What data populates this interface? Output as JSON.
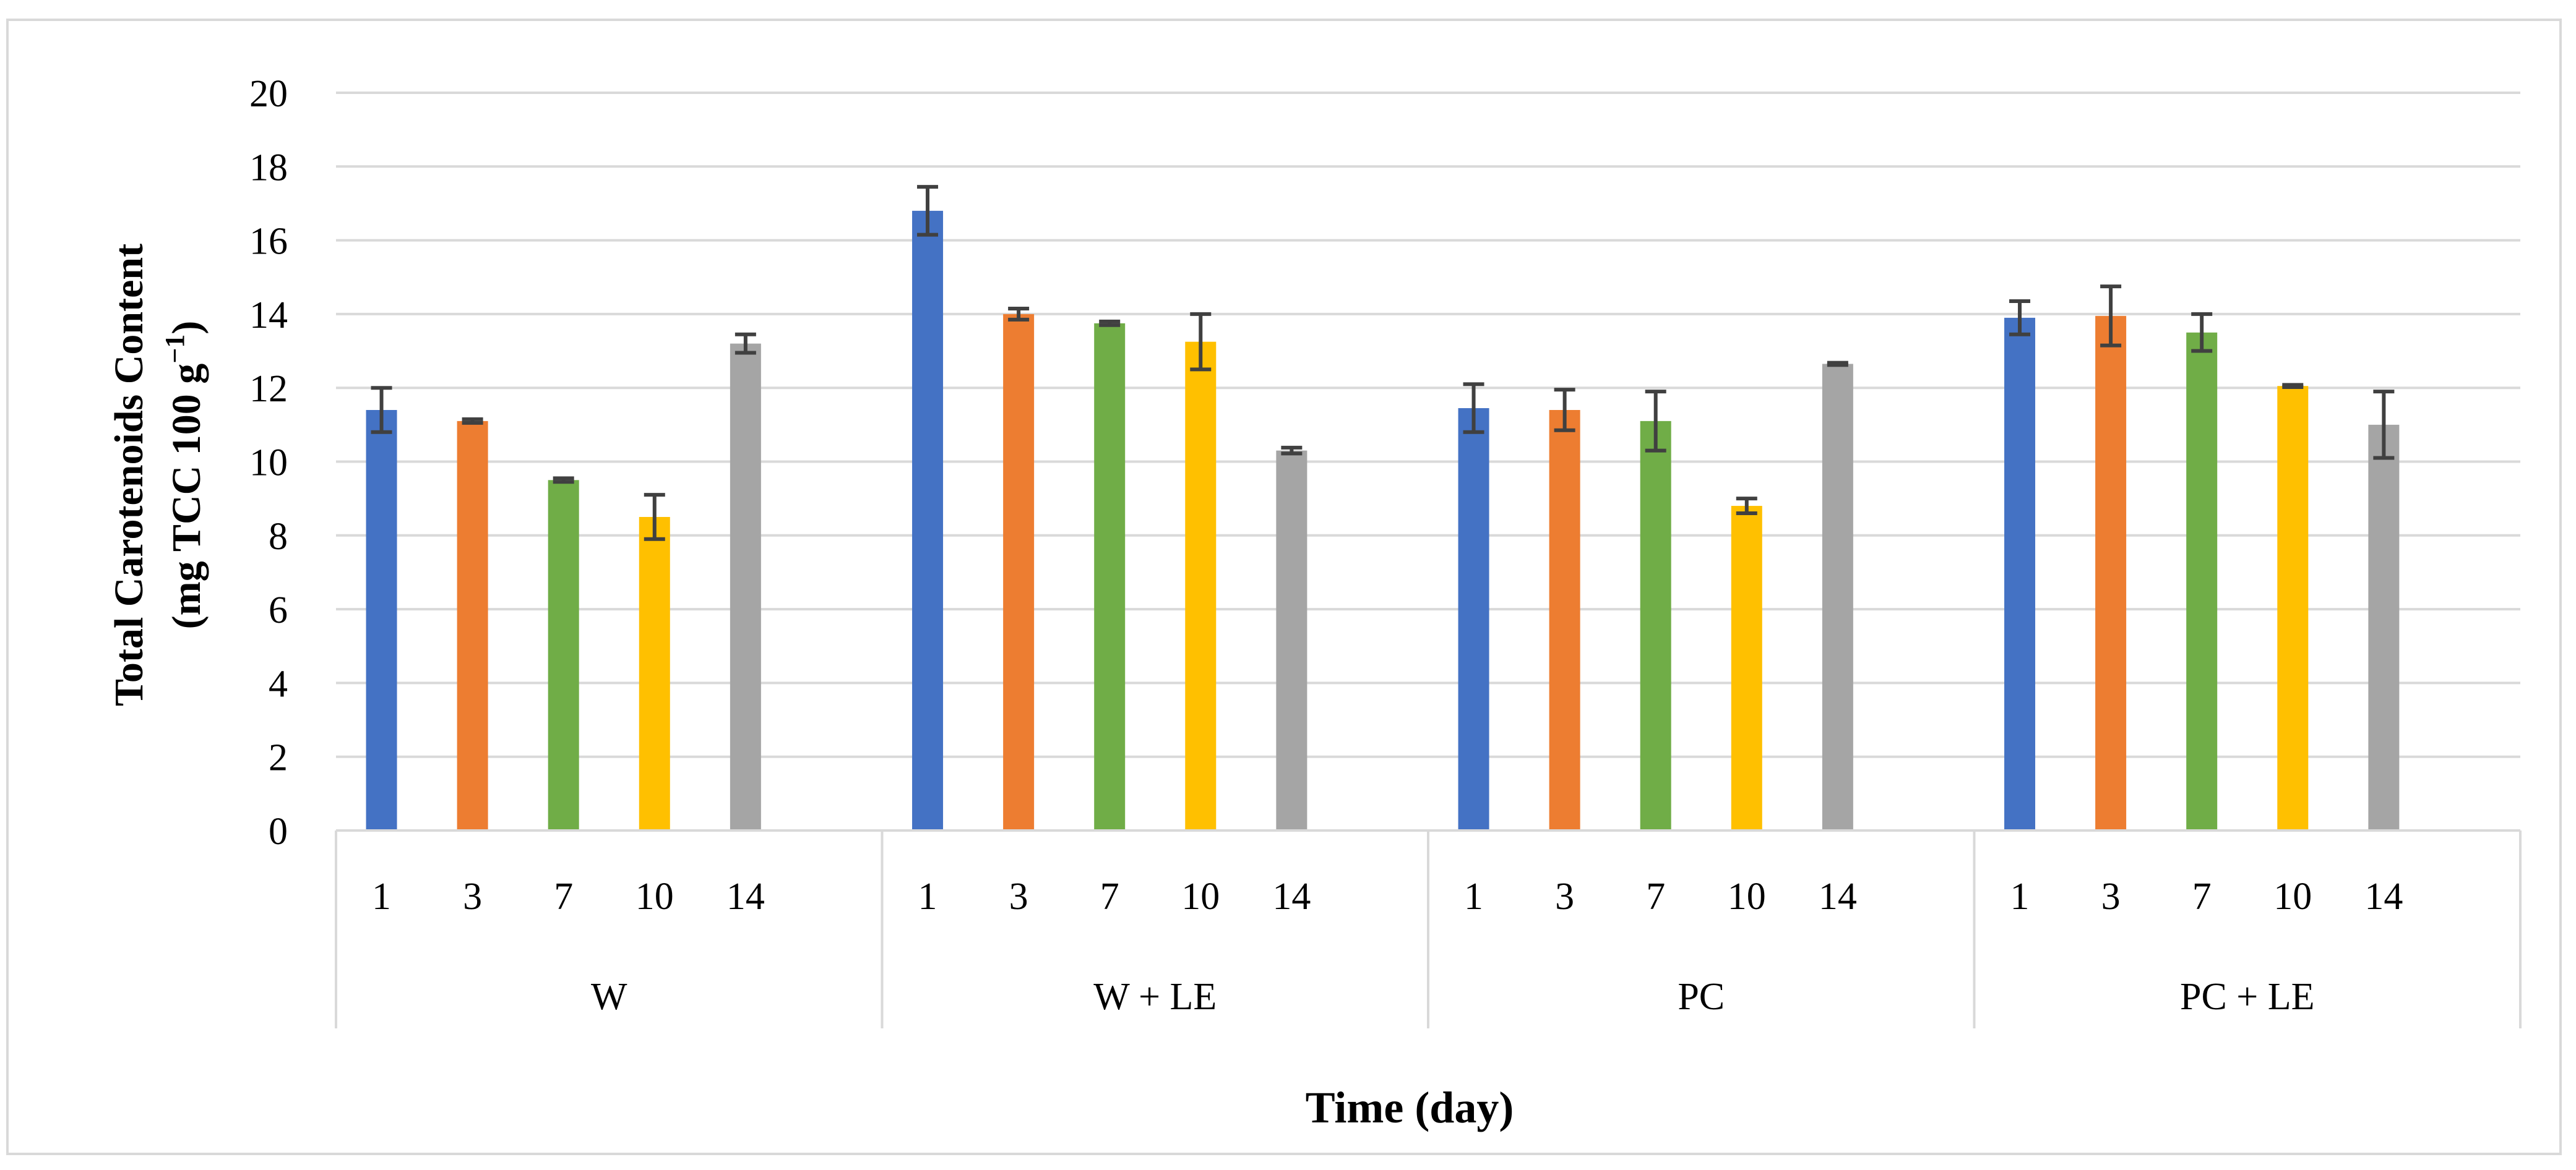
{
  "chart_data": {
    "type": "bar",
    "title": "",
    "xlabel": "Time (day)",
    "ylabel_line1": "Total Carotenoids Content",
    "ylabel_line2_prefix": "(mg TCC 100 g",
    "ylabel_line2_sup": "−1",
    "ylabel_line2_suffix": ")",
    "ylim": [
      0,
      20
    ],
    "yticks": [
      0,
      2,
      4,
      6,
      8,
      10,
      12,
      14,
      16,
      18,
      20
    ],
    "grid": true,
    "days": [
      "1",
      "3",
      "7",
      "10",
      "14"
    ],
    "colors": [
      "#4472c4",
      "#ed7d31",
      "#70ad47",
      "#ffc000",
      "#a5a5a5"
    ],
    "errorbar_color": "#404040",
    "groups": [
      {
        "name": "W",
        "values": [
          11.4,
          11.1,
          9.5,
          8.5,
          13.2
        ],
        "errors": [
          0.6,
          0.05,
          0.05,
          0.6,
          0.25
        ]
      },
      {
        "name": "W + LE",
        "values": [
          16.8,
          14.0,
          13.75,
          13.25,
          10.3
        ],
        "errors": [
          0.65,
          0.15,
          0.05,
          0.75,
          0.08
        ]
      },
      {
        "name": "PC",
        "values": [
          11.45,
          11.4,
          11.1,
          8.8,
          12.65
        ],
        "errors": [
          0.65,
          0.55,
          0.8,
          0.2,
          0.03
        ]
      },
      {
        "name": "PC + LE",
        "values": [
          13.9,
          13.95,
          13.5,
          12.05,
          11.0
        ],
        "errors": [
          0.45,
          0.8,
          0.5,
          0.03,
          0.9
        ]
      }
    ]
  }
}
